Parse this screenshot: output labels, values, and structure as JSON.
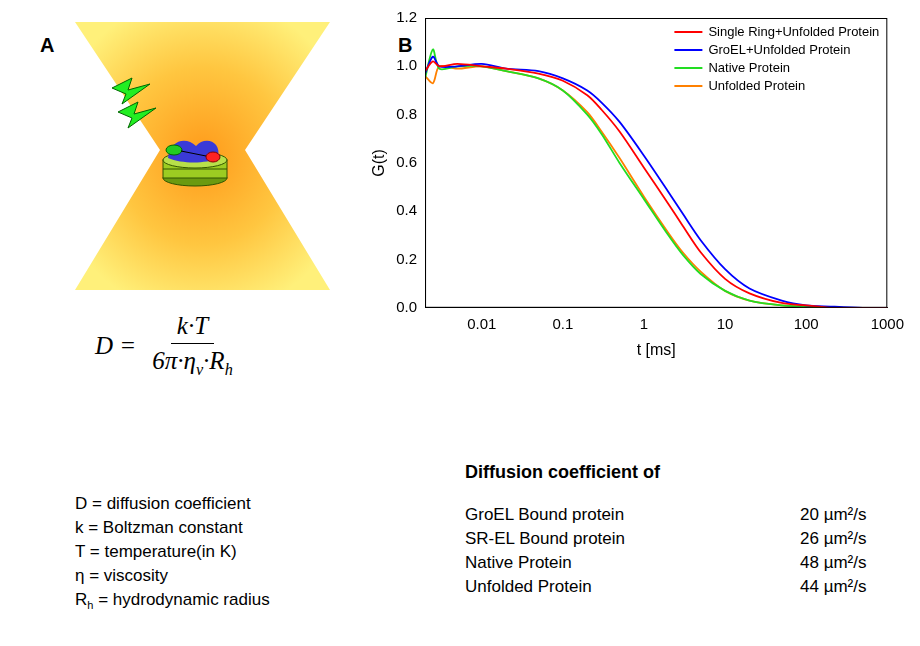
{
  "panel_labels": [
    "A",
    "B"
  ],
  "panel_a": {
    "formula": {
      "lhs": "D =",
      "numerator": [
        {
          "text": "k·T"
        }
      ],
      "denominator": [
        {
          "text": "6π·η"
        },
        {
          "sub": "v"
        },
        {
          "text": "·R"
        },
        {
          "sub": "h"
        }
      ]
    },
    "definitions": [
      [
        {
          "text": "D = diffusion coefficient"
        }
      ],
      [
        {
          "text": "k = Boltzman constant"
        }
      ],
      [
        {
          "text": "T = temperature(in K)"
        }
      ],
      [
        {
          "text": "η = viscosity"
        }
      ],
      [
        {
          "text": "R"
        },
        {
          "sub": "h"
        },
        {
          "text": " = hydrodynamic radius"
        }
      ]
    ]
  },
  "chart_data": {
    "type": "line",
    "x_label": "t [ms]",
    "y_label": "G(t)",
    "log": "x",
    "grid": false,
    "legend": "upper right",
    "xlim": [
      0.002,
      1000
    ],
    "xticks": [
      0.01,
      0.1,
      1,
      10,
      100,
      1000
    ],
    "ylim": [
      0,
      1.2
    ],
    "yticks": [
      {
        "value": 0,
        "label": "0.0"
      },
      {
        "value": 0.2,
        "label": "0.2"
      },
      {
        "value": 0.4,
        "label": "0.4"
      },
      {
        "value": 0.6,
        "label": "0.6"
      },
      {
        "value": 0.8,
        "label": "0.8"
      },
      {
        "value": 1,
        "label": "1.0"
      },
      {
        "value": 1.2,
        "label": "1.2"
      }
    ],
    "x": [
      0.002,
      0.0025,
      0.003,
      0.005,
      0.01,
      0.02,
      0.05,
      0.1,
      0.2,
      0.3,
      0.5,
      1,
      2,
      3,
      5,
      10,
      20,
      50,
      100,
      200,
      500,
      1000
    ],
    "series": [
      {
        "name": "Single Ring+Unfolded Protein",
        "color": "#ff0000",
        "values": [
          0.98,
          1.02,
          1.0,
          1.01,
          1.0,
          0.99,
          0.97,
          0.94,
          0.88,
          0.82,
          0.73,
          0.58,
          0.43,
          0.34,
          0.23,
          0.12,
          0.06,
          0.02,
          0.01,
          0,
          0,
          0
        ]
      },
      {
        "name": "GroEL+Unfolded Protein",
        "color": "#0000ff",
        "values": [
          0.97,
          1.04,
          1.0,
          1.0,
          1.01,
          0.99,
          0.98,
          0.95,
          0.9,
          0.85,
          0.77,
          0.63,
          0.48,
          0.39,
          0.28,
          0.16,
          0.08,
          0.03,
          0.01,
          0.005,
          0,
          0
        ]
      },
      {
        "name": "Native Protein",
        "color": "#22dd22",
        "values": [
          0.95,
          1.07,
          0.99,
          1.0,
          1.0,
          0.98,
          0.95,
          0.9,
          0.8,
          0.72,
          0.6,
          0.45,
          0.3,
          0.22,
          0.14,
          0.07,
          0.03,
          0.01,
          0.005,
          0,
          0,
          0
        ]
      },
      {
        "name": "Unfolded Protein",
        "color": "#ff8000",
        "values": [
          0.96,
          0.93,
          1.0,
          0.99,
          1.0,
          0.98,
          0.95,
          0.9,
          0.81,
          0.73,
          0.62,
          0.46,
          0.31,
          0.23,
          0.15,
          0.07,
          0.03,
          0.01,
          0.005,
          0,
          0,
          0
        ]
      }
    ]
  },
  "diffusion_table": {
    "title": "Diffusion coefficient of",
    "rows": [
      [
        "GroEL Bound protein",
        "20 µm²/s"
      ],
      [
        "SR-EL Bound protein",
        "26 µm²/s"
      ],
      [
        "Native Protein",
        "48 µm²/s"
      ],
      [
        "Unfolded Protein",
        "44 µm²/s"
      ]
    ]
  }
}
